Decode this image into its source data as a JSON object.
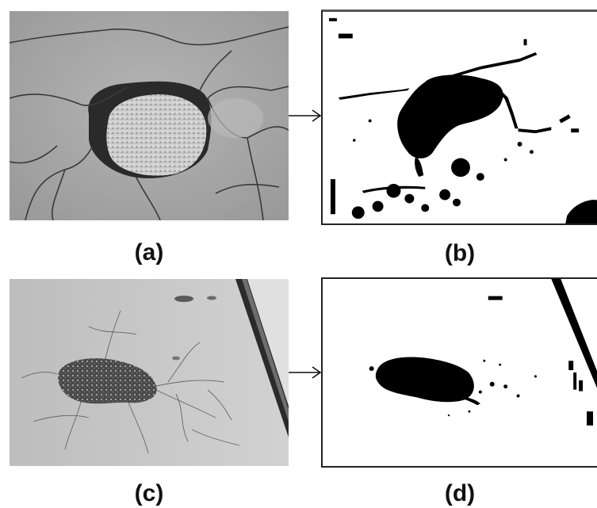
{
  "captions": {
    "a": "(a)",
    "b": "(b)",
    "c": "(c)",
    "d": "(d)"
  },
  "panels": {
    "a": {
      "kind": "grayscale-road-photo"
    },
    "b": {
      "kind": "binary-segmentation"
    },
    "c": {
      "kind": "grayscale-road-photo"
    },
    "d": {
      "kind": "binary-segmentation"
    }
  },
  "colors": {
    "asphalt": "#a6a6a6",
    "crack": "#3a3a3a",
    "pothole": "#1a1a1a",
    "mask_fg": "#000000",
    "mask_bg": "#ffffff"
  }
}
